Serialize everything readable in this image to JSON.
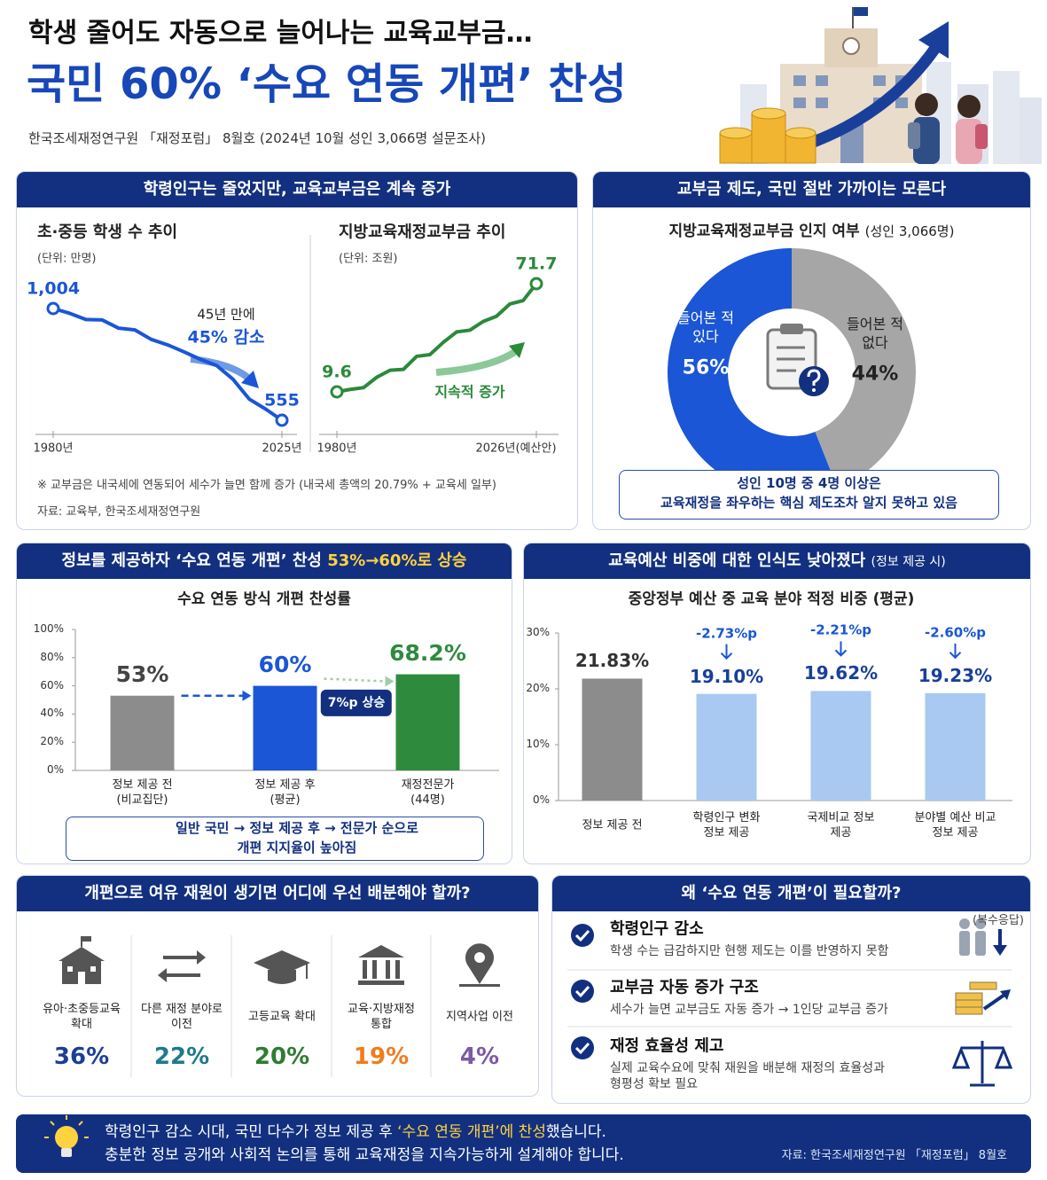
{
  "header": {
    "title": "학생 줄어도 자동으로 늘어나는 교육교부금…",
    "headline": "국민 60% ‘수요 연동 개편’ 찬성",
    "subtitle": "한국조세재정연구원 「재정포럼」 8월호 (2024년 10월 성인 3,066명 설문조사)"
  },
  "sections": [
    {
      "heading": "학령인구는 줄었지만, 교육교부금은 계속 증가",
      "note": "※ 교부금은 내국세에 연동되어 세수가 늘면 함께 증가 (내국세 총액의 20.79% + 교육세 일부)",
      "source": "자료: 교육부, 한국조세재정연구원"
    },
    {
      "heading": "교부금 제도, 국민 절반 가까이는 모른다",
      "callout": [
        "성인 10명 중 4명 이상은",
        "교육재정을 좌우하는 핵심 제도조차 알지 못하고 있음"
      ]
    },
    {
      "heading": [
        "정보를 제공하자 ‘수요 연동 개편’ 찬성 ",
        "53%→60%로 상승"
      ],
      "callout": [
        "일반 국민 → 정보 제공 후 → 전문가 순으로",
        "개편 지지율이 높아짐"
      ]
    },
    {
      "heading": [
        "교육예산 비중에 대한 인식도 낮아졌다",
        "(정보 제공 시)"
      ]
    },
    {
      "heading": "개편으로 여유 재원이 생기면 어디에 우선 배분해야 할까?",
      "note": "(복수응답)",
      "items": [
        {
          "label": "유아·초중등교육\n확대",
          "value": "36%",
          "color": "#1c3f94"
        },
        {
          "label": "다른 재정 분야로\n이전",
          "value": "22%",
          "color": "#1f7a8c"
        },
        {
          "label": "고등교육 확대",
          "value": "20%",
          "color": "#2e7d32"
        },
        {
          "label": "교육·지방재정\n통합",
          "value": "19%",
          "color": "#f07c1e"
        },
        {
          "label": "지역사업 이전",
          "value": "4%",
          "color": "#7b5aa6"
        }
      ]
    },
    {
      "heading": "왜 ‘수요 연동 개편’이 필요할까?",
      "items": [
        {
          "title": "학령인구 감소",
          "text": "학생 수는 급감하지만 현행 제도는 이를 반영하지 못함"
        },
        {
          "title": "교부금 자동 증가 구조",
          "text": "세수가 늘면 교부금도 자동 증가 → 1인당 교부금 증가"
        },
        {
          "title": "재정 효율성 제고",
          "text": "실제 교육수요에 맞춰 재원을 배분해 재정의 효율성과\n형평성 확보 필요"
        }
      ]
    }
  ],
  "footer": {
    "lines": [
      [
        "학령인구 감소 시대, 국민 다수가 정보 제공 후 ",
        "‘수요 연동 개편’에 찬성",
        "했습니다."
      ],
      "충분한 정보 공개와 사회적 논의를 통해 교육재정을 지속가능하게 설계해야 합니다."
    ],
    "source": "자료: 한국조세재정연구원 「재정포럼」 8월호"
  },
  "chart_data": [
    {
      "type": "line",
      "title": "초·중등 학생 수 추이",
      "unit": "(단위: 만명)",
      "categories": [
        "1980년",
        null,
        null,
        null,
        null,
        null,
        null,
        null,
        null,
        null,
        null,
        null,
        null,
        null,
        "2025년"
      ],
      "values": [
        1004,
        985,
        960,
        958,
        925,
        918,
        880,
        858,
        830,
        800,
        775,
        720,
        640,
        600,
        555
      ],
      "value_labels": [
        "1,004",
        null,
        null,
        null,
        null,
        null,
        null,
        null,
        null,
        null,
        null,
        null,
        null,
        null,
        "555"
      ],
      "color": "#1a56d6",
      "annotations": [
        "45년 만에",
        "45% 감소"
      ]
    },
    {
      "type": "line",
      "title": "지방교육재정교부금 추이",
      "unit": "(단위: 조원)",
      "categories": [
        "1980년",
        null,
        null,
        null,
        null,
        null,
        null,
        null,
        null,
        null,
        null,
        null,
        null,
        null,
        null,
        "2026년(예산안)"
      ],
      "values": [
        9.6,
        11,
        12,
        18,
        22,
        22.5,
        30,
        31,
        38,
        44,
        45,
        50,
        53,
        60,
        62,
        71.7
      ],
      "value_labels": [
        "9.6",
        null,
        null,
        null,
        null,
        null,
        null,
        null,
        null,
        null,
        null,
        null,
        null,
        null,
        null,
        "71.7"
      ],
      "color": "#2a8a3a",
      "annotations": [
        "지속적 증가"
      ]
    },
    {
      "type": "pie",
      "title": "지방교육재정교부금 인지 여부",
      "subtitle": "(성인 3,066명)",
      "categories": [
        "들어본 적\n있다",
        "들어본 적\n없다"
      ],
      "values": [
        56,
        44
      ],
      "value_labels": [
        "56%",
        "44%"
      ],
      "colors": [
        "#1a56d6",
        "#a6a6a6"
      ]
    },
    {
      "type": "bar",
      "title": "수요 연동 방식 개편 찬성률",
      "categories": [
        "정보 제공 전\n(비교집단)",
        "정보 제공 후\n(평균)",
        "재정전문가\n(44명)"
      ],
      "values": [
        53,
        60,
        68.2
      ],
      "value_labels": [
        "53%",
        "60%",
        "68.2%"
      ],
      "colors": [
        "#8c8c8c",
        "#1a56d6",
        "#2e8b3e"
      ],
      "label_colors": [
        "#444444",
        "#1a56d6",
        "#2e8b3e"
      ],
      "ylim": [
        0,
        100
      ],
      "yticks": [
        {
          "value": 0,
          "label": "0%"
        },
        {
          "value": 20,
          "label": "20%"
        },
        {
          "value": 40,
          "label": "40%"
        },
        {
          "value": 60,
          "label": "60%"
        },
        {
          "value": 80,
          "label": "80%"
        },
        {
          "value": 100,
          "label": "100%"
        }
      ],
      "annotation": "7%p 상승"
    },
    {
      "type": "bar",
      "title": "중앙정부 예산 중 교육 분야 적정 비중 (평균)",
      "categories": [
        "정보 제공 전",
        "학령인구 변화\n정보 제공",
        "국제비교 정보\n제공",
        "분야별 예산 비교\n정보 제공"
      ],
      "values": [
        21.83,
        19.1,
        19.62,
        19.23
      ],
      "value_labels": [
        "21.83%",
        "19.10%",
        "19.62%",
        "19.23%"
      ],
      "change_labels": [
        null,
        "-2.73%p",
        "-2.21%p",
        "-2.60%p"
      ],
      "colors": [
        "#8c8c8c",
        "#a9c9f2",
        "#a9c9f2",
        "#a9c9f2"
      ],
      "label_colors": [
        "#333333",
        "#1a3f9a",
        "#1a3f9a",
        "#1a3f9a"
      ],
      "ylim": [
        0,
        30
      ],
      "yticks": [
        {
          "value": 0,
          "label": "0%"
        },
        {
          "value": 10,
          "label": "10%"
        },
        {
          "value": 20,
          "label": "20%"
        },
        {
          "value": 30,
          "label": "30%"
        }
      ]
    }
  ]
}
